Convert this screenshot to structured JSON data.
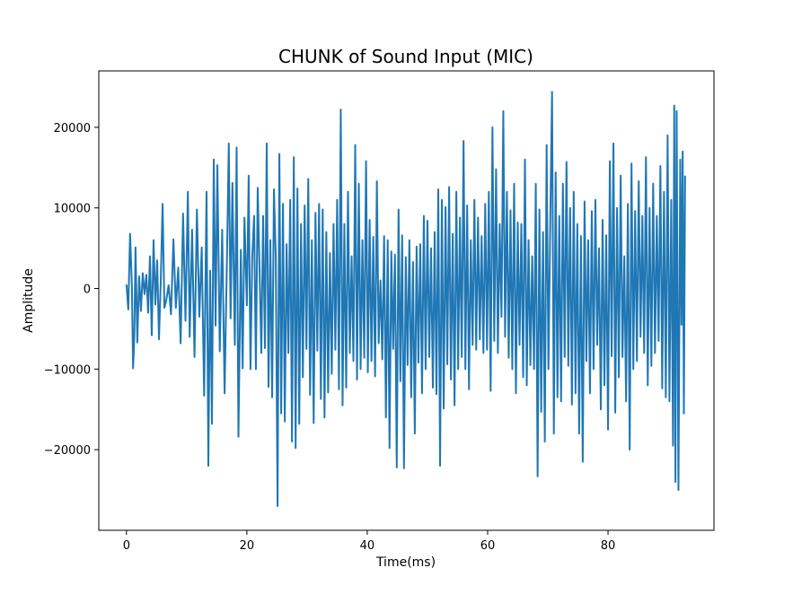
{
  "chart_data": {
    "type": "line",
    "title": "CHUNK of Sound Input (MIC)",
    "xlabel": "Time(ms)",
    "ylabel": "Amplitude",
    "xlim": [
      -4.6,
      97.6
    ],
    "ylim": [
      -30000,
      27000
    ],
    "xticks": [
      0,
      20,
      40,
      60,
      80
    ],
    "xtick_labels": [
      "0",
      "20",
      "40",
      "60",
      "80"
    ],
    "yticks": [
      -20000,
      -10000,
      0,
      10000,
      20000
    ],
    "ytick_labels": [
      "−20000",
      "−10000",
      "0",
      "10000",
      "20000"
    ],
    "grid": false,
    "legend": "none",
    "line_color": "#1f77b4",
    "series": [
      {
        "x_start": 0,
        "x_end": 92.8,
        "peaks": [
          [
            0,
            500
          ],
          [
            0.3,
            -2600
          ],
          [
            0.6,
            6800
          ],
          [
            0.9,
            300
          ],
          [
            1.1,
            -9900
          ],
          [
            1.3,
            -6000
          ],
          [
            1.5,
            5100
          ],
          [
            1.8,
            -6700
          ],
          [
            2.1,
            1500
          ],
          [
            2.4,
            -2800
          ],
          [
            2.7,
            1900
          ],
          [
            3.0,
            -700
          ],
          [
            3.3,
            1700
          ],
          [
            3.6,
            -3000
          ],
          [
            3.9,
            4000
          ],
          [
            4.2,
            -5800
          ],
          [
            4.5,
            6000
          ],
          [
            4.8,
            -2000
          ],
          [
            5.1,
            3500
          ],
          [
            5.4,
            -6300
          ],
          [
            5.7,
            1000
          ],
          [
            6.0,
            10500
          ],
          [
            6.3,
            -2400
          ],
          [
            6.6,
            -1500
          ],
          [
            7.0,
            400
          ],
          [
            7.4,
            -3200
          ],
          [
            7.8,
            6100
          ],
          [
            8.2,
            -2400
          ],
          [
            8.6,
            2600
          ],
          [
            9.0,
            -6800
          ],
          [
            9.4,
            9300
          ],
          [
            9.8,
            -4000
          ],
          [
            10.2,
            12000
          ],
          [
            10.5,
            -6000
          ],
          [
            10.9,
            7300
          ],
          [
            11.3,
            -8500
          ],
          [
            11.7,
            9800
          ],
          [
            12.1,
            -3500
          ],
          [
            12.5,
            5100
          ],
          [
            12.9,
            -13300
          ],
          [
            13.3,
            12000
          ],
          [
            13.6,
            -22000
          ],
          [
            13.9,
            2200
          ],
          [
            14.2,
            -16800
          ],
          [
            14.5,
            16000
          ],
          [
            14.8,
            -4600
          ],
          [
            15.1,
            15300
          ],
          [
            15.5,
            -7800
          ],
          [
            15.9,
            7300
          ],
          [
            16.3,
            -13000
          ],
          [
            16.7,
            4000
          ],
          [
            17.0,
            18000
          ],
          [
            17.3,
            -3700
          ],
          [
            17.6,
            13100
          ],
          [
            18.0,
            -7000
          ],
          [
            18.3,
            17500
          ],
          [
            18.6,
            -18400
          ],
          [
            19.0,
            4800
          ],
          [
            19.3,
            -9900
          ],
          [
            19.6,
            8800
          ],
          [
            20.0,
            -2100
          ],
          [
            20.3,
            14000
          ],
          [
            20.6,
            -10000
          ],
          [
            20.9,
            4000
          ],
          [
            21.2,
            9000
          ],
          [
            21.5,
            -10000
          ],
          [
            21.8,
            12500
          ],
          [
            22.1,
            2500
          ],
          [
            22.4,
            -8000
          ],
          [
            22.7,
            9000
          ],
          [
            23.0,
            -7400
          ],
          [
            23.3,
            18000
          ],
          [
            23.6,
            -12200
          ],
          [
            23.9,
            6000
          ],
          [
            24.2,
            -13500
          ],
          [
            24.5,
            12300
          ],
          [
            24.8,
            4000
          ],
          [
            25.1,
            -27000
          ],
          [
            25.4,
            16700
          ],
          [
            25.7,
            -15500
          ],
          [
            26.0,
            10500
          ],
          [
            26.3,
            -16500
          ],
          [
            26.6,
            5500
          ],
          [
            26.9,
            -8000
          ],
          [
            27.2,
            11000
          ],
          [
            27.5,
            -19000
          ],
          [
            27.8,
            16300
          ],
          [
            28.1,
            -19800
          ],
          [
            28.4,
            12400
          ],
          [
            28.7,
            -16800
          ],
          [
            29.0,
            8000
          ],
          [
            29.3,
            -11000
          ],
          [
            29.6,
            10300
          ],
          [
            29.9,
            -7500
          ],
          [
            30.2,
            13600
          ],
          [
            30.5,
            -13200
          ],
          [
            30.8,
            6000
          ],
          [
            31.1,
            -16700
          ],
          [
            31.4,
            9400
          ],
          [
            31.7,
            -7700
          ],
          [
            32.0,
            10500
          ],
          [
            32.3,
            -13700
          ],
          [
            32.6,
            9800
          ],
          [
            32.9,
            -16000
          ],
          [
            33.2,
            7000
          ],
          [
            33.5,
            -12900
          ],
          [
            33.8,
            4400
          ],
          [
            34.1,
            -10600
          ],
          [
            34.4,
            8000
          ],
          [
            34.7,
            -7600
          ],
          [
            35.0,
            11000
          ],
          [
            35.3,
            -12500
          ],
          [
            35.6,
            22200
          ],
          [
            35.9,
            -14500
          ],
          [
            36.2,
            8000
          ],
          [
            36.5,
            -12300
          ],
          [
            36.8,
            12000
          ],
          [
            37.1,
            -8000
          ],
          [
            37.4,
            4000
          ],
          [
            37.7,
            -9000
          ],
          [
            38.0,
            17800
          ],
          [
            38.3,
            -11300
          ],
          [
            38.6,
            13000
          ],
          [
            38.9,
            -10000
          ],
          [
            39.2,
            6000
          ],
          [
            39.5,
            -8600
          ],
          [
            39.8,
            15800
          ],
          [
            40.1,
            -10400
          ],
          [
            40.4,
            8500
          ],
          [
            40.7,
            -9000
          ],
          [
            41.0,
            6400
          ],
          [
            41.3,
            -10900
          ],
          [
            41.6,
            13300
          ],
          [
            41.9,
            -6800
          ],
          [
            42.2,
            1000
          ],
          [
            42.5,
            -8800
          ],
          [
            42.8,
            6500
          ],
          [
            43.1,
            -16000
          ],
          [
            43.4,
            6000
          ],
          [
            43.7,
            -19800
          ],
          [
            44.0,
            4600
          ],
          [
            44.3,
            -7500
          ],
          [
            44.6,
            4200
          ],
          [
            44.9,
            -22200
          ],
          [
            45.2,
            9800
          ],
          [
            45.5,
            -11500
          ],
          [
            45.8,
            6600
          ],
          [
            46.1,
            -22300
          ],
          [
            46.4,
            3900
          ],
          [
            46.7,
            -9500
          ],
          [
            47.0,
            6000
          ],
          [
            47.3,
            -13500
          ],
          [
            47.6,
            3300
          ],
          [
            47.9,
            -18000
          ],
          [
            48.2,
            5200
          ],
          [
            48.5,
            -9200
          ],
          [
            48.8,
            5500
          ],
          [
            49.1,
            -13000
          ],
          [
            49.4,
            9000
          ],
          [
            49.7,
            -10000
          ],
          [
            50.0,
            8400
          ],
          [
            50.3,
            -8500
          ],
          [
            50.6,
            5000
          ],
          [
            50.9,
            -12300
          ],
          [
            51.2,
            7000
          ],
          [
            51.5,
            -13100
          ],
          [
            51.8,
            12300
          ],
          [
            52.1,
            -22000
          ],
          [
            52.4,
            11000
          ],
          [
            52.7,
            -14900
          ],
          [
            53.0,
            10100
          ],
          [
            53.3,
            -9400
          ],
          [
            53.6,
            12600
          ],
          [
            53.9,
            -11300
          ],
          [
            54.2,
            6800
          ],
          [
            54.5,
            -14500
          ],
          [
            54.8,
            12000
          ],
          [
            55.1,
            -10000
          ],
          [
            55.4,
            8800
          ],
          [
            55.7,
            -8500
          ],
          [
            56.0,
            18300
          ],
          [
            56.3,
            -10000
          ],
          [
            56.6,
            10300
          ],
          [
            56.9,
            -12500
          ],
          [
            57.2,
            6000
          ],
          [
            57.5,
            -7000
          ],
          [
            57.8,
            11000
          ],
          [
            58.1,
            -7600
          ],
          [
            58.4,
            8800
          ],
          [
            58.7,
            -6300
          ],
          [
            59.0,
            6500
          ],
          [
            59.3,
            -8000
          ],
          [
            59.6,
            10500
          ],
          [
            59.9,
            -7600
          ],
          [
            60.2,
            12000
          ],
          [
            60.5,
            -12700
          ],
          [
            60.8,
            20000
          ],
          [
            61.1,
            -6500
          ],
          [
            61.4,
            14800
          ],
          [
            61.7,
            -8000
          ],
          [
            62.0,
            8000
          ],
          [
            62.3,
            -3500
          ],
          [
            62.6,
            22000
          ],
          [
            62.9,
            -6000
          ],
          [
            63.2,
            12000
          ],
          [
            63.5,
            -8600
          ],
          [
            63.8,
            9700
          ],
          [
            64.1,
            -10000
          ],
          [
            64.4,
            13000
          ],
          [
            64.7,
            -13000
          ],
          [
            65.0,
            8200
          ],
          [
            65.3,
            -7000
          ],
          [
            65.6,
            8000
          ],
          [
            65.9,
            -11000
          ],
          [
            66.2,
            16000
          ],
          [
            66.5,
            -12000
          ],
          [
            66.8,
            6000
          ],
          [
            67.1,
            -9500
          ],
          [
            67.4,
            4000
          ],
          [
            67.7,
            -10000
          ],
          [
            68.0,
            13000
          ],
          [
            68.3,
            -23300
          ],
          [
            68.6,
            9800
          ],
          [
            68.9,
            -15300
          ],
          [
            69.2,
            7000
          ],
          [
            69.5,
            -19000
          ],
          [
            69.8,
            17800
          ],
          [
            70.1,
            -10000
          ],
          [
            70.4,
            8000
          ],
          [
            70.7,
            24400
          ],
          [
            71.0,
            -18000
          ],
          [
            71.3,
            14400
          ],
          [
            71.6,
            -13500
          ],
          [
            71.9,
            9000
          ],
          [
            72.2,
            -14000
          ],
          [
            72.5,
            13000
          ],
          [
            72.8,
            -8500
          ],
          [
            73.1,
            15700
          ],
          [
            73.4,
            -9600
          ],
          [
            73.7,
            10000
          ],
          [
            74.0,
            -14400
          ],
          [
            74.3,
            12000
          ],
          [
            74.6,
            -13000
          ],
          [
            74.9,
            8000
          ],
          [
            75.2,
            -18000
          ],
          [
            75.5,
            6500
          ],
          [
            75.8,
            -21500
          ],
          [
            76.1,
            10800
          ],
          [
            76.4,
            -9000
          ],
          [
            76.7,
            6000
          ],
          [
            77.0,
            -13000
          ],
          [
            77.3,
            9600
          ],
          [
            77.6,
            -10000
          ],
          [
            77.9,
            11000
          ],
          [
            78.2,
            -7000
          ],
          [
            78.5,
            5000
          ],
          [
            78.8,
            -15000
          ],
          [
            79.1,
            8500
          ],
          [
            79.4,
            -12000
          ],
          [
            79.7,
            6600
          ],
          [
            80.0,
            -17500
          ],
          [
            80.3,
            15800
          ],
          [
            80.6,
            -8400
          ],
          [
            80.9,
            18000
          ],
          [
            81.2,
            -15400
          ],
          [
            81.5,
            10000
          ],
          [
            81.8,
            -11000
          ],
          [
            82.1,
            14000
          ],
          [
            82.4,
            -8500
          ],
          [
            82.7,
            4000
          ],
          [
            83.0,
            -14000
          ],
          [
            83.3,
            10500
          ],
          [
            83.6,
            -20000
          ],
          [
            83.9,
            15500
          ],
          [
            84.2,
            -10000
          ],
          [
            84.5,
            9600
          ],
          [
            84.8,
            -9000
          ],
          [
            85.1,
            13300
          ],
          [
            85.4,
            -6000
          ],
          [
            85.7,
            9000
          ],
          [
            86.0,
            -8000
          ],
          [
            86.3,
            16300
          ],
          [
            86.6,
            -12000
          ],
          [
            86.9,
            10000
          ],
          [
            87.2,
            -9600
          ],
          [
            87.5,
            13000
          ],
          [
            87.8,
            -8000
          ],
          [
            88.1,
            9000
          ],
          [
            88.4,
            -6500
          ],
          [
            88.7,
            15200
          ],
          [
            89.0,
            -12400
          ],
          [
            89.3,
            12000
          ],
          [
            89.6,
            -13500
          ],
          [
            89.9,
            19000
          ],
          [
            90.2,
            -14000
          ],
          [
            90.5,
            11000
          ],
          [
            90.8,
            -19500
          ],
          [
            91.0,
            22700
          ],
          [
            91.2,
            -24000
          ],
          [
            91.4,
            22000
          ],
          [
            91.7,
            -25000
          ],
          [
            92.0,
            16000
          ],
          [
            92.2,
            -4500
          ],
          [
            92.4,
            17000
          ],
          [
            92.6,
            -15500
          ],
          [
            92.8,
            14000
          ]
        ]
      }
    ]
  }
}
